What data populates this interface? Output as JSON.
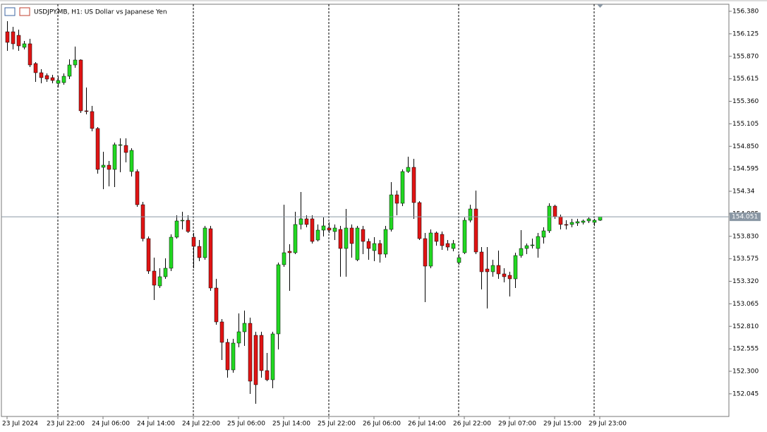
{
  "chart_data": {
    "type": "candlestick",
    "title": "USDJPY.MB, H1:  US Dollar vs Japanese Yen",
    "categories": [
      "23 Jul 2024",
      null,
      null,
      null,
      null,
      null,
      null,
      null,
      null,
      "23 Jul 22:00",
      null,
      null,
      null,
      null,
      null,
      null,
      null,
      "24 Jul 06:00",
      null,
      null,
      null,
      null,
      null,
      null,
      null,
      "24 Jul 14:00",
      null,
      null,
      null,
      null,
      null,
      null,
      null,
      "24 Jul 22:00",
      null,
      null,
      null,
      null,
      null,
      null,
      null,
      "25 Jul 06:00",
      null,
      null,
      null,
      null,
      null,
      null,
      null,
      "25 Jul 14:00",
      null,
      null,
      null,
      null,
      null,
      null,
      null,
      "25 Jul 22:00",
      null,
      null,
      null,
      null,
      null,
      null,
      null,
      "26 Jul 06:00",
      null,
      null,
      null,
      null,
      null,
      null,
      null,
      "26 Jul 14:00",
      null,
      null,
      null,
      null,
      null,
      null,
      null,
      "26 Jul 22:00",
      null,
      null,
      null,
      null,
      null,
      null,
      null,
      "29 Jul 07:00",
      null,
      null,
      null,
      null,
      null,
      null,
      null,
      "29 Jul 15:00",
      null,
      null,
      null,
      null,
      null,
      null,
      null,
      "29 Jul 23:00"
    ],
    "open": [
      156.148,
      156.148,
      156.108,
      155.972,
      156.012,
      155.788,
      155.684,
      155.652,
      155.628,
      155.564,
      155.572,
      155.644,
      155.772,
      155.828,
      155.252,
      155.244,
      155.052,
      154.612,
      154.636,
      154.588,
      154.86,
      154.86,
      154.564,
      154.564,
      154.188,
      153.804,
      153.436,
      153.268,
      153.372,
      153.468,
      153.82,
      154.004,
      154.012,
      153.82,
      153.716,
      153.588,
      153.916,
      153.244,
      152.86,
      152.628,
      152.316,
      152.62,
      152.748,
      152.844,
      152.708,
      152.708,
      152.308,
      152.204,
      152.724,
      153.508,
      153.66,
      153.644,
      153.964,
      154.028,
      154.028,
      153.788,
      153.9,
      153.924,
      153.884,
      153.908,
      153.692,
      153.924,
      153.564,
      153.908,
      153.772,
      153.668,
      153.748,
      153.628,
      153.908,
      154.3,
      154.204,
      154.564,
      154.612,
      154.212,
      153.804,
      153.492,
      153.868,
      153.852,
      153.748,
      153.692,
      153.532,
      153.644,
      154.012,
      154.14,
      153.652,
      153.46,
      153.428,
      153.5,
      153.404,
      153.388,
      153.348,
      153.612,
      153.692,
      153.724,
      153.692,
      153.82,
      153.892,
      154.172,
      154.052,
      153.964,
      153.964,
      153.98,
      153.988,
      154.004,
      153.988,
      154.012
    ],
    "high": [
      156.268,
      156.204,
      156.172,
      156.044,
      156.068,
      155.804,
      155.724,
      155.676,
      155.66,
      155.644,
      155.676,
      155.836,
      155.98,
      155.836,
      155.516,
      155.308,
      155.068,
      154.788,
      154.684,
      154.892,
      154.94,
      154.94,
      154.828,
      154.588,
      154.22,
      153.828,
      153.588,
      153.468,
      153.58,
      153.852,
      154.068,
      154.108,
      154.068,
      153.868,
      153.788,
      153.948,
      153.948,
      153.348,
      152.892,
      152.668,
      152.668,
      152.956,
      152.988,
      152.908,
      152.748,
      152.748,
      152.508,
      152.748,
      153.532,
      154.188,
      153.74,
      154.108,
      154.332,
      154.068,
      154.068,
      153.964,
      154.044,
      153.988,
      153.964,
      153.948,
      154.14,
      153.964,
      153.948,
      153.948,
      153.804,
      153.82,
      153.788,
      153.948,
      154.444,
      154.348,
      154.588,
      154.732,
      154.708,
      154.228,
      153.868,
      153.908,
      153.884,
      153.884,
      153.788,
      153.788,
      153.628,
      154.044,
      154.188,
      154.348,
      153.708,
      153.708,
      153.564,
      153.668,
      153.468,
      153.428,
      153.644,
      153.9,
      153.748,
      153.804,
      153.868,
      153.932,
      154.204,
      154.188,
      154.076,
      154.012,
      154.028,
      154.028,
      154.02,
      154.044,
      154.028,
      154.052
    ],
    "low": [
      155.932,
      155.948,
      155.932,
      155.948,
      155.748,
      155.58,
      155.564,
      155.58,
      155.564,
      155.516,
      155.548,
      155.612,
      155.74,
      155.228,
      155.212,
      155.02,
      154.54,
      154.364,
      154.396,
      154.388,
      154.556,
      154.668,
      154.508,
      154.164,
      153.772,
      153.404,
      153.108,
      153.244,
      153.348,
      153.436,
      153.804,
      153.908,
      153.868,
      153.468,
      153.548,
      153.564,
      153.212,
      152.828,
      152.428,
      152.228,
      152.284,
      152.572,
      152.588,
      152.044,
      151.932,
      152.228,
      152.188,
      152.108,
      152.548,
      153.484,
      153.212,
      153.628,
      153.908,
      153.932,
      153.748,
      153.772,
      153.828,
      153.868,
      153.788,
      153.372,
      153.372,
      153.588,
      153.548,
      153.628,
      153.564,
      153.548,
      153.532,
      153.588,
      153.884,
      154.068,
      154.172,
      154.548,
      154.028,
      153.788,
      153.084,
      153.468,
      153.724,
      153.676,
      153.668,
      153.66,
      153.508,
      153.628,
      153.988,
      153.628,
      153.228,
      153.012,
      153.372,
      153.348,
      153.308,
      153.148,
      153.244,
      153.588,
      153.628,
      153.692,
      153.588,
      153.748,
      153.868,
      154.028,
      153.908,
      153.908,
      153.932,
      153.948,
      153.964,
      153.98,
      153.948,
      154.004
    ],
    "close": [
      156.028,
      156.012,
      155.988,
      156.012,
      155.772,
      155.684,
      155.628,
      155.612,
      155.596,
      155.596,
      155.644,
      155.772,
      155.828,
      155.252,
      155.244,
      155.052,
      154.588,
      154.636,
      154.588,
      154.868,
      154.868,
      154.78,
      154.804,
      154.188,
      153.804,
      153.436,
      153.276,
      153.372,
      153.468,
      153.82,
      154.004,
      154.012,
      153.884,
      153.716,
      153.588,
      153.924,
      153.244,
      152.86,
      152.628,
      152.316,
      152.62,
      152.748,
      152.844,
      152.188,
      152.148,
      152.308,
      152.204,
      152.724,
      153.508,
      153.644,
      153.644,
      153.964,
      154.028,
      153.964,
      153.772,
      153.9,
      153.948,
      153.9,
      153.924,
      153.692,
      153.924,
      153.748,
      153.924,
      153.772,
      153.692,
      153.748,
      153.628,
      153.908,
      154.3,
      154.204,
      154.564,
      154.612,
      154.212,
      153.804,
      153.492,
      153.868,
      153.772,
      153.724,
      153.708,
      153.748,
      153.588,
      154.012,
      154.14,
      153.652,
      153.428,
      153.428,
      153.5,
      153.404,
      153.372,
      153.348,
      153.612,
      153.692,
      153.724,
      153.732,
      153.828,
      153.892,
      154.172,
      154.052,
      153.964,
      153.956,
      153.988,
      153.996,
      154.004,
      154.028,
      154.012,
      154.051
    ],
    "last_price": 154.051,
    "up_color": "#22d822",
    "down_color": "#e01414",
    "ylim": [
      151.788,
      156.46
    ],
    "yticks": [
      {
        "value": 156.38,
        "label": "156.380"
      },
      156.125,
      {
        "value": 155.87,
        "label": "155.870"
      },
      155.615,
      {
        "value": 155.36,
        "label": "155.360"
      },
      155.105,
      {
        "value": 154.85,
        "label": "154.850"
      },
      154.595,
      154.34,
      154.085,
      {
        "value": 153.83,
        "label": "153.830"
      },
      153.575,
      {
        "value": 153.32,
        "label": "153.320"
      },
      153.065,
      {
        "value": 152.81,
        "label": "152.810"
      },
      152.555,
      {
        "value": 152.3,
        "label": "152.300"
      },
      152.045
    ]
  }
}
